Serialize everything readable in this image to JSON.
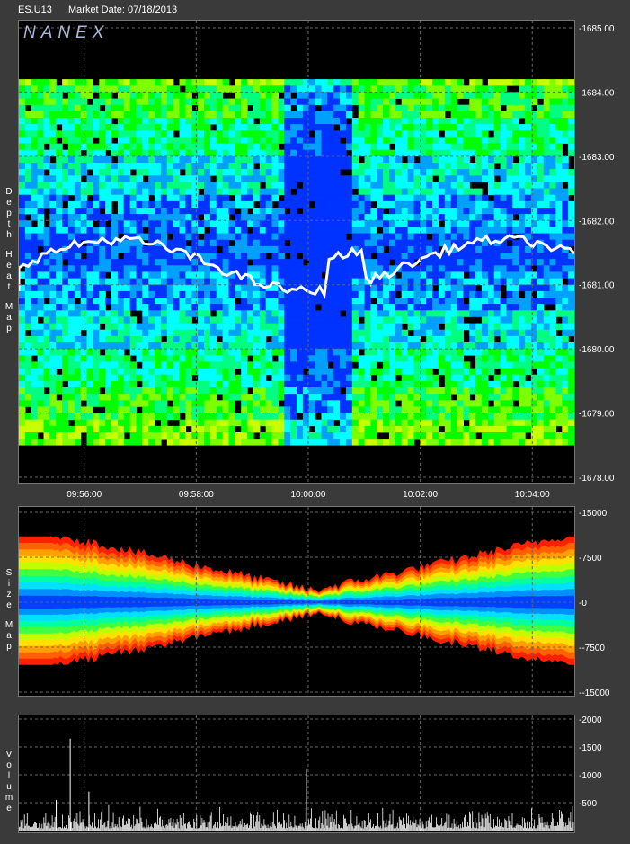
{
  "header": {
    "symbol": "ES.U13",
    "market_date": "Market Date: 07/18/2013"
  },
  "brand": "NANEX",
  "panel_labels": {
    "heat": "Depth Heat Map",
    "size": "Size Map",
    "volume": "Volume"
  },
  "chart_data": [
    {
      "type": "heatmap",
      "title": "Depth Heat Map",
      "ylim": [
        1678.0,
        1685.0
      ],
      "y_ticks": [
        "1685.00",
        "1684.00",
        "1683.00",
        "1682.00",
        "1681.00",
        "1680.00",
        "1679.00",
        "1678.00"
      ],
      "x_ticks": [
        "09:56:00",
        "09:58:00",
        "10:00:00",
        "10:02:00",
        "10:04:00"
      ],
      "grid": true,
      "colors": {
        "high": "#ff0000",
        "mid": "#ffff00",
        "low": "#00ff00",
        "cool": "#00ffff",
        "deep": "#0033ff",
        "trade": "#ffffff"
      }
    },
    {
      "type": "area",
      "title": "Size Map",
      "ylim": [
        -15000,
        15000
      ],
      "y_ticks": [
        "15000",
        "7500",
        "0",
        "-7500",
        "-15000"
      ],
      "grid": true
    },
    {
      "type": "bar",
      "title": "Volume",
      "ylim": [
        0,
        2000
      ],
      "y_ticks": [
        "2000",
        "1500",
        "1000",
        "500"
      ],
      "grid": true,
      "peaks": [
        {
          "time": "09:55:45",
          "value": 1650
        },
        {
          "time": "09:59:58",
          "value": 1100
        },
        {
          "time": "09:55:30",
          "value": 550
        },
        {
          "time": "09:56:05",
          "value": 700
        }
      ]
    }
  ]
}
